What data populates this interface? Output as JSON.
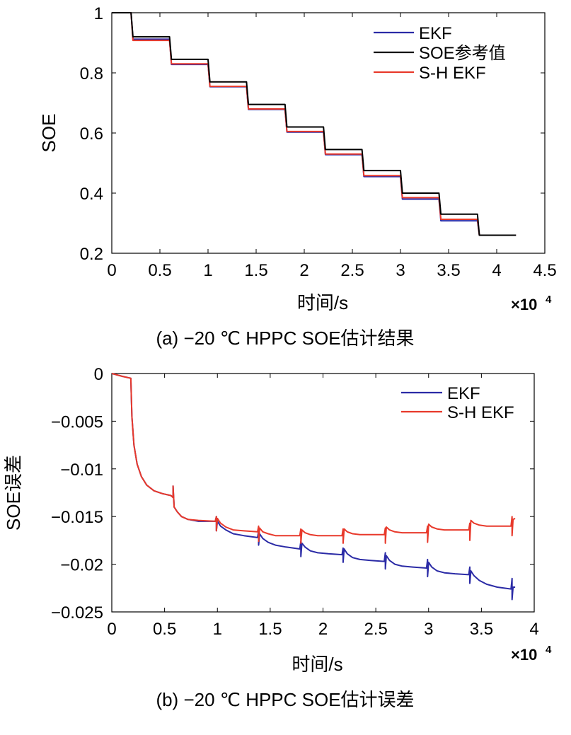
{
  "chart_data": [
    {
      "type": "line",
      "caption": "(a) −20 ℃ HPPC SOE估计结果",
      "xlabel": "时间/s",
      "ylabel": "SOE",
      "x_exponent": "×10",
      "x_exponent_power": "4",
      "xlim": [
        0,
        4.5
      ],
      "ylim": [
        0.2,
        1.0
      ],
      "xticks": [
        "0",
        "0.5",
        "1",
        "1.5",
        "2",
        "2.5",
        "3",
        "3.5",
        "4",
        "4.5"
      ],
      "yticks": [
        "0.2",
        "0.4",
        "0.6",
        "0.8",
        "1"
      ],
      "legend_position": "top-right",
      "series": [
        {
          "name": "EKF",
          "color": "#2b2ba6",
          "x": [
            0,
            0.2,
            0.22,
            0.6,
            0.62,
            1.0,
            1.02,
            1.4,
            1.42,
            1.8,
            1.82,
            2.2,
            2.22,
            2.6,
            2.62,
            3.0,
            3.02,
            3.4,
            3.42,
            3.8,
            3.82,
            4.2
          ],
          "y": [
            1.0,
            1.0,
            0.912,
            0.912,
            0.828,
            0.828,
            0.754,
            0.754,
            0.678,
            0.678,
            0.603,
            0.603,
            0.528,
            0.528,
            0.455,
            0.455,
            0.38,
            0.38,
            0.308,
            0.308,
            0.26,
            0.26
          ]
        },
        {
          "name": "SOE参考值",
          "color": "#000000",
          "x": [
            0,
            0.2,
            0.22,
            0.6,
            0.62,
            1.0,
            1.02,
            1.4,
            1.42,
            1.8,
            1.82,
            2.2,
            2.22,
            2.6,
            2.62,
            3.0,
            3.02,
            3.4,
            3.42,
            3.8,
            3.82,
            4.2
          ],
          "y": [
            1.0,
            1.0,
            0.92,
            0.92,
            0.845,
            0.845,
            0.77,
            0.77,
            0.695,
            0.695,
            0.62,
            0.62,
            0.545,
            0.545,
            0.475,
            0.475,
            0.4,
            0.4,
            0.33,
            0.33,
            0.26,
            0.26
          ]
        },
        {
          "name": "S-H EKF",
          "color": "#e8392b",
          "x": [
            0,
            0.2,
            0.22,
            0.6,
            0.62,
            1.0,
            1.02,
            1.4,
            1.42,
            1.8,
            1.82,
            2.2,
            2.22,
            2.6,
            2.62,
            3.0,
            3.02,
            3.4,
            3.42,
            3.8,
            3.82,
            4.2
          ],
          "y": [
            1.0,
            1.0,
            0.908,
            0.908,
            0.83,
            0.83,
            0.755,
            0.755,
            0.68,
            0.68,
            0.605,
            0.605,
            0.53,
            0.53,
            0.458,
            0.458,
            0.385,
            0.385,
            0.313,
            0.313,
            0.26,
            0.26
          ]
        }
      ]
    },
    {
      "type": "line",
      "caption": "(b) −20 ℃ HPPC SOE估计误差",
      "xlabel": "时间/s",
      "ylabel": "SOE误差",
      "x_exponent": "×10",
      "x_exponent_power": "4",
      "xlim": [
        0,
        4
      ],
      "ylim": [
        -0.025,
        0
      ],
      "xticks": [
        "0",
        "0.5",
        "1",
        "1.5",
        "2",
        "2.5",
        "3",
        "3.5",
        "4"
      ],
      "yticks": [
        "−0.025",
        "−0.02",
        "−0.015",
        "−0.01",
        "−0.005",
        "0"
      ],
      "legend_position": "top-right",
      "series": [
        {
          "name": "EKF",
          "color": "#2b2ba6",
          "x": [
            0,
            0.1,
            0.18,
            0.19,
            0.21,
            0.24,
            0.28,
            0.33,
            0.4,
            0.48,
            0.56,
            0.58,
            0.58,
            0.59,
            0.62,
            0.66,
            0.72,
            0.82,
            0.98,
            0.99,
            0.99,
            1.0,
            1.03,
            1.08,
            1.15,
            1.25,
            1.38,
            1.39,
            1.39,
            1.4,
            1.43,
            1.48,
            1.55,
            1.65,
            1.78,
            1.79,
            1.79,
            1.8,
            1.83,
            1.88,
            1.95,
            2.05,
            2.18,
            2.19,
            2.19,
            2.2,
            2.23,
            2.28,
            2.35,
            2.45,
            2.58,
            2.59,
            2.59,
            2.6,
            2.63,
            2.68,
            2.75,
            2.85,
            2.98,
            2.99,
            2.99,
            3.0,
            3.03,
            3.08,
            3.15,
            3.25,
            3.38,
            3.39,
            3.39,
            3.4,
            3.43,
            3.48,
            3.55,
            3.65,
            3.78,
            3.79,
            3.79,
            3.8,
            3.82
          ],
          "y": [
            0,
            -0.0003,
            -0.0005,
            -0.0045,
            -0.0075,
            -0.0095,
            -0.0108,
            -0.0117,
            -0.0123,
            -0.0126,
            -0.0128,
            -0.013,
            -0.0118,
            -0.014,
            -0.0145,
            -0.015,
            -0.0153,
            -0.0155,
            -0.0155,
            -0.015,
            -0.0165,
            -0.0155,
            -0.016,
            -0.0164,
            -0.0168,
            -0.017,
            -0.0172,
            -0.0165,
            -0.018,
            -0.0168,
            -0.0173,
            -0.0177,
            -0.018,
            -0.0182,
            -0.0184,
            -0.0176,
            -0.0192,
            -0.0178,
            -0.0182,
            -0.0186,
            -0.0188,
            -0.0189,
            -0.019,
            -0.0183,
            -0.0198,
            -0.0184,
            -0.0189,
            -0.0193,
            -0.0195,
            -0.0196,
            -0.0197,
            -0.0188,
            -0.0205,
            -0.0191,
            -0.0196,
            -0.02,
            -0.0202,
            -0.0203,
            -0.0204,
            -0.0195,
            -0.0213,
            -0.0198,
            -0.0203,
            -0.0207,
            -0.0209,
            -0.021,
            -0.0211,
            -0.0203,
            -0.022,
            -0.0207,
            -0.0212,
            -0.0217,
            -0.0221,
            -0.0224,
            -0.0226,
            -0.0215,
            -0.0237,
            -0.0224,
            -0.0224
          ]
        },
        {
          "name": "S-H EKF",
          "color": "#e8392b",
          "x": [
            0,
            0.1,
            0.18,
            0.19,
            0.21,
            0.24,
            0.28,
            0.33,
            0.4,
            0.48,
            0.56,
            0.58,
            0.58,
            0.59,
            0.62,
            0.66,
            0.72,
            0.82,
            0.98,
            0.99,
            0.99,
            1.0,
            1.03,
            1.08,
            1.15,
            1.25,
            1.38,
            1.39,
            1.39,
            1.4,
            1.43,
            1.48,
            1.55,
            1.65,
            1.78,
            1.79,
            1.79,
            1.8,
            1.83,
            1.88,
            1.95,
            2.05,
            2.18,
            2.19,
            2.19,
            2.2,
            2.23,
            2.28,
            2.35,
            2.45,
            2.58,
            2.59,
            2.59,
            2.6,
            2.63,
            2.68,
            2.75,
            2.85,
            2.98,
            2.99,
            2.99,
            3.0,
            3.03,
            3.08,
            3.15,
            3.25,
            3.38,
            3.39,
            3.39,
            3.4,
            3.43,
            3.48,
            3.55,
            3.65,
            3.78,
            3.79,
            3.79,
            3.8,
            3.82
          ],
          "y": [
            0,
            -0.0003,
            -0.0005,
            -0.0045,
            -0.0075,
            -0.0095,
            -0.0108,
            -0.0117,
            -0.0123,
            -0.0126,
            -0.0128,
            -0.013,
            -0.0118,
            -0.014,
            -0.0145,
            -0.015,
            -0.0153,
            -0.0154,
            -0.0155,
            -0.015,
            -0.0165,
            -0.0152,
            -0.0157,
            -0.0161,
            -0.0164,
            -0.0165,
            -0.0166,
            -0.016,
            -0.0176,
            -0.0162,
            -0.0166,
            -0.0168,
            -0.017,
            -0.017,
            -0.017,
            -0.0163,
            -0.0178,
            -0.0164,
            -0.0167,
            -0.0169,
            -0.017,
            -0.017,
            -0.017,
            -0.0163,
            -0.0178,
            -0.0163,
            -0.0166,
            -0.0168,
            -0.0169,
            -0.0169,
            -0.0169,
            -0.0162,
            -0.0178,
            -0.0161,
            -0.0164,
            -0.0166,
            -0.0167,
            -0.0167,
            -0.0167,
            -0.016,
            -0.0177,
            -0.0158,
            -0.0161,
            -0.0163,
            -0.0164,
            -0.0164,
            -0.0164,
            -0.0157,
            -0.0175,
            -0.0154,
            -0.0157,
            -0.0159,
            -0.016,
            -0.016,
            -0.016,
            -0.015,
            -0.017,
            -0.0153,
            -0.0152
          ]
        }
      ]
    }
  ]
}
